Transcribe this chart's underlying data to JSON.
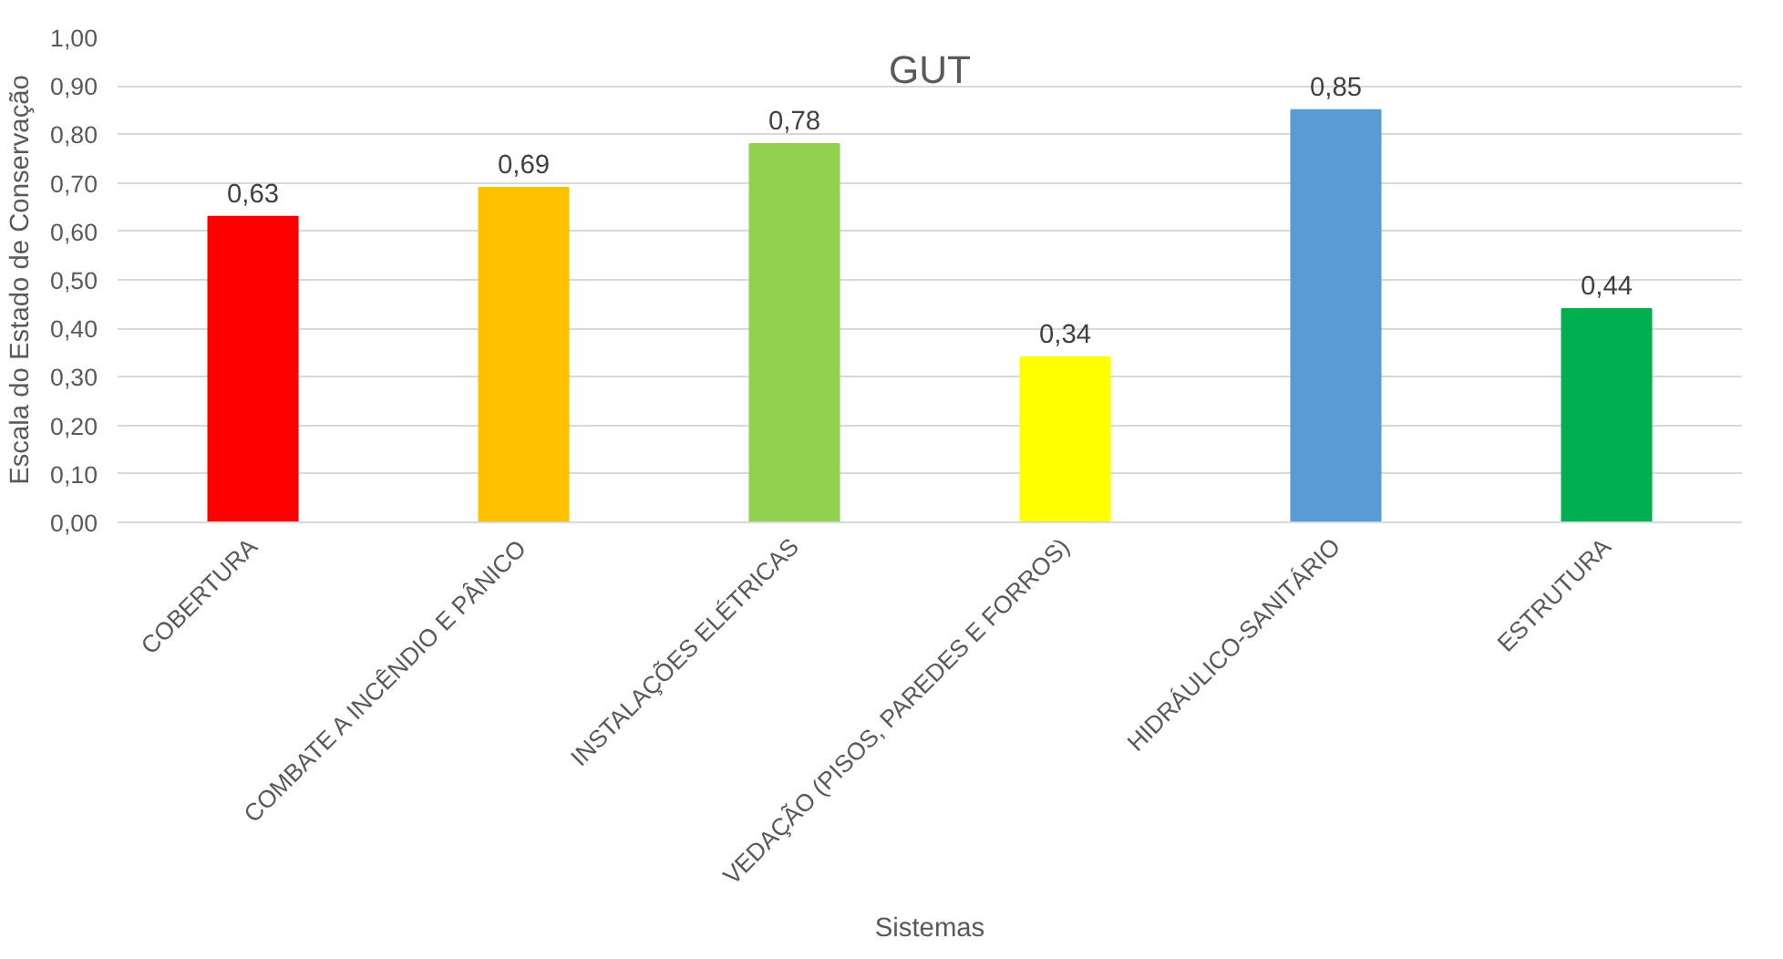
{
  "chart_data": {
    "type": "bar",
    "title": "GUT",
    "xlabel": "Sistemas",
    "ylabel": "Escala do Estado de Conservação",
    "categories": [
      "COBERTURA",
      "COMBATE A INCÊNDIO E PÂNICO",
      "INSTALAÇÕES ELÉTRICAS",
      "VEDAÇÃO (PISOS, PAREDES E FORROS)",
      "HIDRÁULICO-SANITÁRIO",
      "ESTRUTURA"
    ],
    "values": [
      0.63,
      0.69,
      0.78,
      0.34,
      0.85,
      0.44
    ],
    "colors": [
      "#ff0000",
      "#ffc000",
      "#92d050",
      "#ffff00",
      "#5b9bd5",
      "#00b050"
    ],
    "value_labels": [
      "0,63",
      "0,69",
      "0,78",
      "0,34",
      "0,85",
      "0,44"
    ],
    "ylim": [
      0,
      1
    ],
    "yticks": [
      {
        "value": 0,
        "label": "0,00"
      },
      {
        "value": 0.1,
        "label": "0,10"
      },
      {
        "value": 0.2,
        "label": "0,20"
      },
      {
        "value": 0.3,
        "label": "0,30"
      },
      {
        "value": 0.4,
        "label": "0,40"
      },
      {
        "value": 0.5,
        "label": "0,50"
      },
      {
        "value": 0.6,
        "label": "0,60"
      },
      {
        "value": 0.7,
        "label": "0,70"
      },
      {
        "value": 0.8,
        "label": "0,80"
      },
      {
        "value": 0.9,
        "label": "0,90"
      },
      {
        "value": 1,
        "label": "1,00"
      }
    ],
    "grid": "y"
  }
}
